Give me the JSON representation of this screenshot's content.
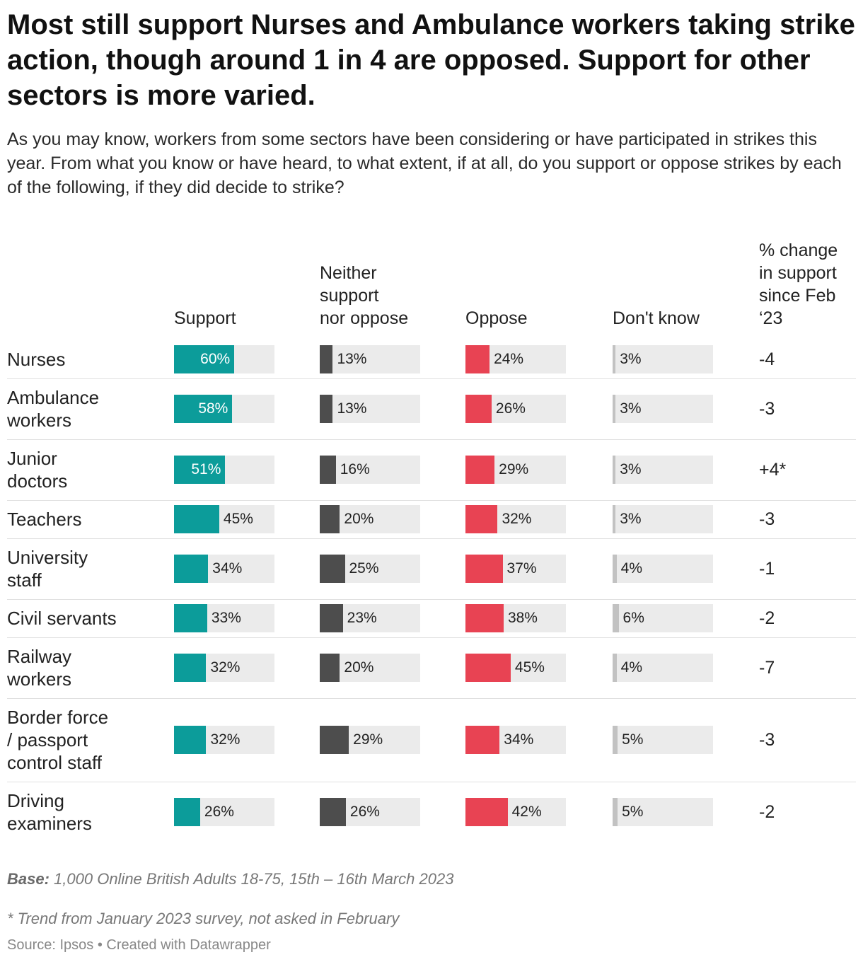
{
  "title": "Most still support Nurses and Ambulance workers taking strike action, though around 1 in 4 are opposed. Support for other sectors is more varied.",
  "subtitle": "As you may know, workers from some sectors have been considering or have participated in strikes this year. From what you know or have heard, to what extent, if at all, do you support or oppose strikes by each of the following, if they did decide to strike?",
  "colors": {
    "support": "#0c9c9a",
    "neither": "#4d4d4d",
    "oppose": "#e84353",
    "dont_know": "#c2c2c2",
    "track": "#ebebeb"
  },
  "chart_data": {
    "type": "table",
    "columns": [
      {
        "key": "support",
        "label": "Support"
      },
      {
        "key": "neither",
        "label": "Neither\nsupport\nnor oppose"
      },
      {
        "key": "oppose",
        "label": "Oppose"
      },
      {
        "key": "dont_know",
        "label": "Don't know"
      }
    ],
    "change_header": "% change\nin support\nsince Feb\n‘23",
    "value_unit": "%",
    "max_value": 100,
    "rows": [
      {
        "label": "Nurses",
        "support": 60,
        "neither": 13,
        "oppose": 24,
        "dont_know": 3,
        "change": "-4"
      },
      {
        "label": "Ambulance\nworkers",
        "support": 58,
        "neither": 13,
        "oppose": 26,
        "dont_know": 3,
        "change": "-3"
      },
      {
        "label": "Junior\ndoctors",
        "support": 51,
        "neither": 16,
        "oppose": 29,
        "dont_know": 3,
        "change": "+4*"
      },
      {
        "label": "Teachers",
        "support": 45,
        "neither": 20,
        "oppose": 32,
        "dont_know": 3,
        "change": "-3"
      },
      {
        "label": "University\nstaff",
        "support": 34,
        "neither": 25,
        "oppose": 37,
        "dont_know": 4,
        "change": "-1"
      },
      {
        "label": "Civil servants",
        "support": 33,
        "neither": 23,
        "oppose": 38,
        "dont_know": 6,
        "change": "-2"
      },
      {
        "label": "Railway\nworkers",
        "support": 32,
        "neither": 20,
        "oppose": 45,
        "dont_know": 4,
        "change": "-7"
      },
      {
        "label": "Border force\n/ passport\ncontrol staff",
        "support": 32,
        "neither": 29,
        "oppose": 34,
        "dont_know": 5,
        "change": "-3"
      },
      {
        "label": "Driving\nexaminers",
        "support": 26,
        "neither": 26,
        "oppose": 42,
        "dont_know": 5,
        "change": "-2"
      }
    ]
  },
  "notes": {
    "base_label": "Base:",
    "base_text": " 1,000 Online British Adults 18-75, 15th – 16th March 2023",
    "footnote": "* Trend from January 2023 survey, not asked in February",
    "source": "Source: Ipsos • Created with Datawrapper"
  }
}
